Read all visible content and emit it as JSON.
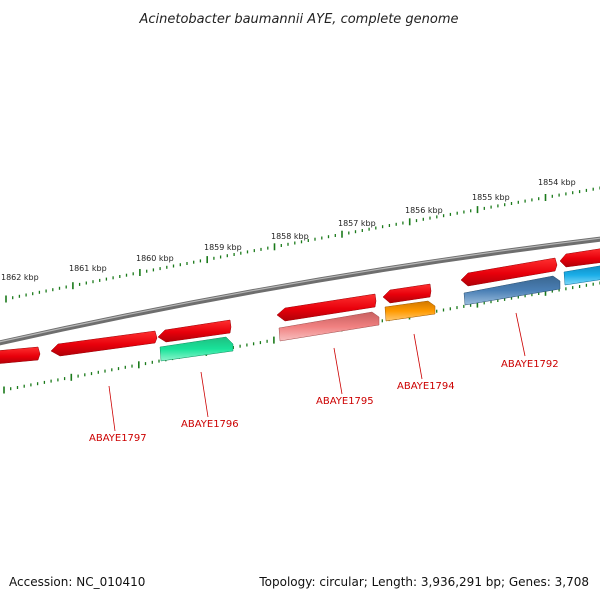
{
  "title": "Acinetobacter baumannii AYE, complete genome",
  "accession": "Accession: NC_010410",
  "summary": "Topology: circular; Length: 3,936,291 bp; Genes: 3,708",
  "colors": {
    "backbone": "#888888",
    "ticks": "#1a7a1a",
    "label": "#cc0000"
  },
  "ticks": [
    {
      "label": "1862 kbp"
    },
    {
      "label": "1861 kbp"
    },
    {
      "label": "1860 kbp"
    },
    {
      "label": "1859 kbp"
    },
    {
      "label": "1858 kbp"
    },
    {
      "label": "1857 kbp"
    },
    {
      "label": "1856 kbp"
    },
    {
      "label": "1855 kbp"
    },
    {
      "label": "1854 kbp"
    }
  ],
  "genes": [
    {
      "id": "ABAYE1797",
      "label": "ABAYE1797"
    },
    {
      "id": "ABAYE1796",
      "label": "ABAYE1796"
    },
    {
      "id": "ABAYE1795",
      "label": "ABAYE1795"
    },
    {
      "id": "ABAYE1794",
      "label": "ABAYE1794"
    },
    {
      "id": "ABAYE1792",
      "label": "ABAYE1792"
    }
  ],
  "features": [
    {
      "name": "outer-feature-1",
      "color": "#e8000b"
    },
    {
      "name": "outer-feature-2",
      "color": "#e8000b"
    },
    {
      "name": "outer-feature-3",
      "color": "#e8000b"
    },
    {
      "name": "outer-feature-4",
      "color": "#e8000b"
    },
    {
      "name": "outer-feature-5",
      "color": "#e8000b"
    },
    {
      "name": "outer-feature-6",
      "color": "#e8000b"
    },
    {
      "name": "outer-feature-7",
      "color": "#e8000b"
    },
    {
      "name": "inner-feature-abaye1796",
      "color": "#19e39a"
    },
    {
      "name": "inner-feature-abaye1795",
      "color": "#f08080"
    },
    {
      "name": "inner-feature-abaye1794",
      "color": "#ff9a00"
    },
    {
      "name": "inner-feature-abaye1792",
      "color": "#4a7fb5"
    },
    {
      "name": "inner-feature-8",
      "color": "#1aaee8"
    }
  ]
}
